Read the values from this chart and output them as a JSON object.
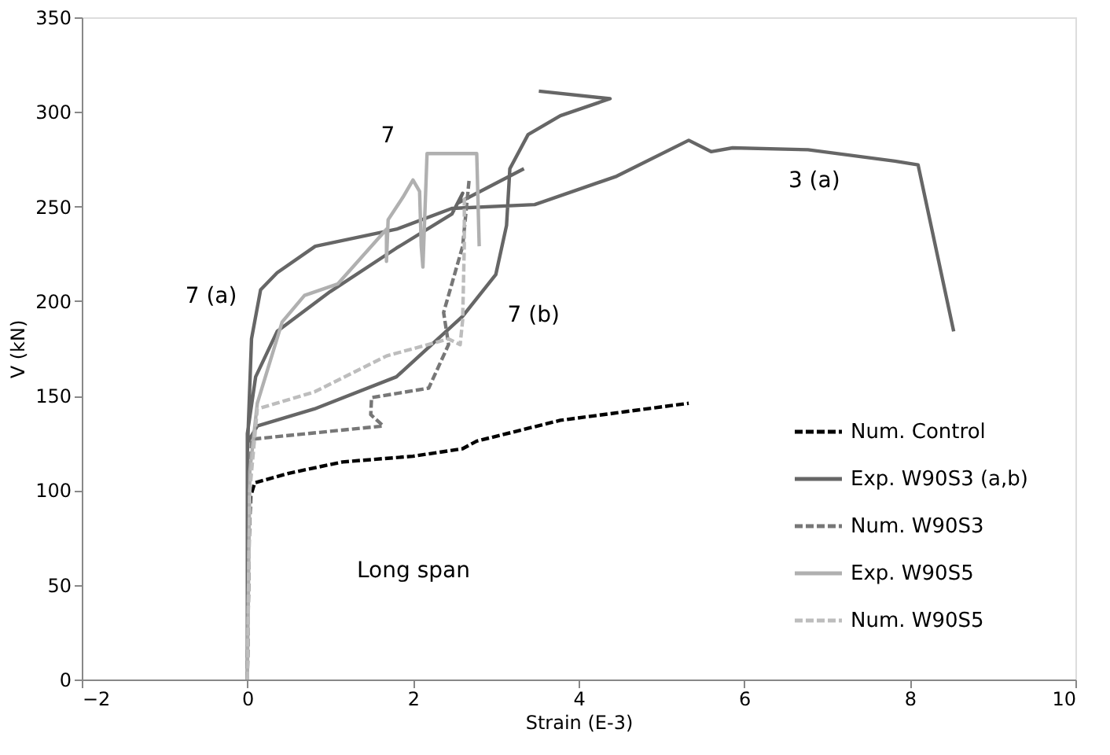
{
  "chart_data": {
    "type": "line",
    "xlabel": "Strain (E-3)",
    "ylabel": "V (kN)",
    "xlim": [
      -2,
      10
    ],
    "xticks": [
      -2,
      0,
      2,
      4,
      6,
      8,
      10
    ],
    "ylim": [
      0,
      350
    ],
    "yticks": [
      0,
      50,
      100,
      150,
      200,
      250,
      300,
      350
    ],
    "grid": false,
    "legend": "bottom right",
    "series": [
      {
        "name": "Num. Control",
        "color": "#000000",
        "line_style": "dashed",
        "x": [
          0,
          0.02,
          0.04,
          0.09,
          0.5,
          1.15,
          2.0,
          2.6,
          2.77,
          3.78,
          5.33
        ],
        "values": [
          0,
          74,
          97,
          104,
          109,
          115,
          118,
          122,
          126,
          137,
          146
        ]
      },
      {
        "name": "Exp. W90S3 (a,b)",
        "color": "#666666",
        "line_style": "solid",
        "x": [
          0,
          0,
          0.05,
          0.16,
          0.36,
          0.82,
          1.8,
          2.47,
          3.47,
          4.46,
          5.33,
          5.6,
          5.86,
          6.77,
          7.82,
          8.1,
          8.53,
          null,
          0,
          0,
          0.1,
          0.36,
          1.0,
          1.8,
          2.47,
          2.6,
          2.55,
          3.34,
          null,
          0,
          0,
          0.12,
          0.81,
          1.8,
          2.6,
          3.0,
          3.13,
          3.17,
          3.39,
          3.78,
          4.38,
          3.52
        ],
        "values": [
          0,
          120,
          180,
          206,
          215,
          229,
          238,
          249,
          251,
          266,
          285,
          279,
          281,
          280,
          274,
          272,
          184,
          null,
          0,
          130,
          160,
          184,
          205,
          228,
          246,
          257,
          252,
          270,
          null,
          0,
          125,
          134,
          143,
          160,
          192,
          214,
          240,
          270,
          288,
          298,
          307,
          311
        ]
      },
      {
        "name": "Num. W90S3",
        "color": "#777777",
        "line_style": "dashed",
        "x": [
          0,
          0.03,
          0.05,
          1.64,
          1.49,
          1.5,
          2.19,
          2.43,
          2.37,
          2.6,
          2.68
        ],
        "values": [
          0,
          100,
          127,
          134,
          140,
          149,
          154,
          177,
          194,
          229,
          265
        ]
      },
      {
        "name": "Exp. W90S5",
        "color": "#b0b0b0",
        "line_style": "solid",
        "x": [
          0,
          0.03,
          0.12,
          0.42,
          0.69,
          1.09,
          1.68,
          1.68,
          1.7,
          1.88,
          2.0,
          2.08,
          2.1,
          2.12,
          2.17,
          2.77,
          2.8
        ],
        "values": [
          0,
          110,
          146,
          189,
          203,
          209,
          238,
          221,
          243,
          255,
          264,
          258,
          229,
          218,
          278,
          278,
          229
        ]
      },
      {
        "name": "Num. W90S5",
        "color": "#bdbdbd",
        "line_style": "dashed",
        "x": [
          0,
          0.03,
          0.12,
          0.81,
          1.68,
          2.43,
          2.57,
          2.6,
          2.62,
          2.62
        ],
        "values": [
          0,
          100,
          143,
          152,
          171,
          180,
          177,
          190,
          230,
          255
        ]
      }
    ],
    "annotations": [
      {
        "text": "7 (a)",
        "x": 0.36,
        "y": 184
      },
      {
        "text": "7",
        "x": 2.0,
        "y": 264
      },
      {
        "text": "7 (b)",
        "x": 3.0,
        "y": 214
      },
      {
        "text": "3 (a)",
        "x": 6.77,
        "y": 280
      },
      "Long span"
    ]
  }
}
